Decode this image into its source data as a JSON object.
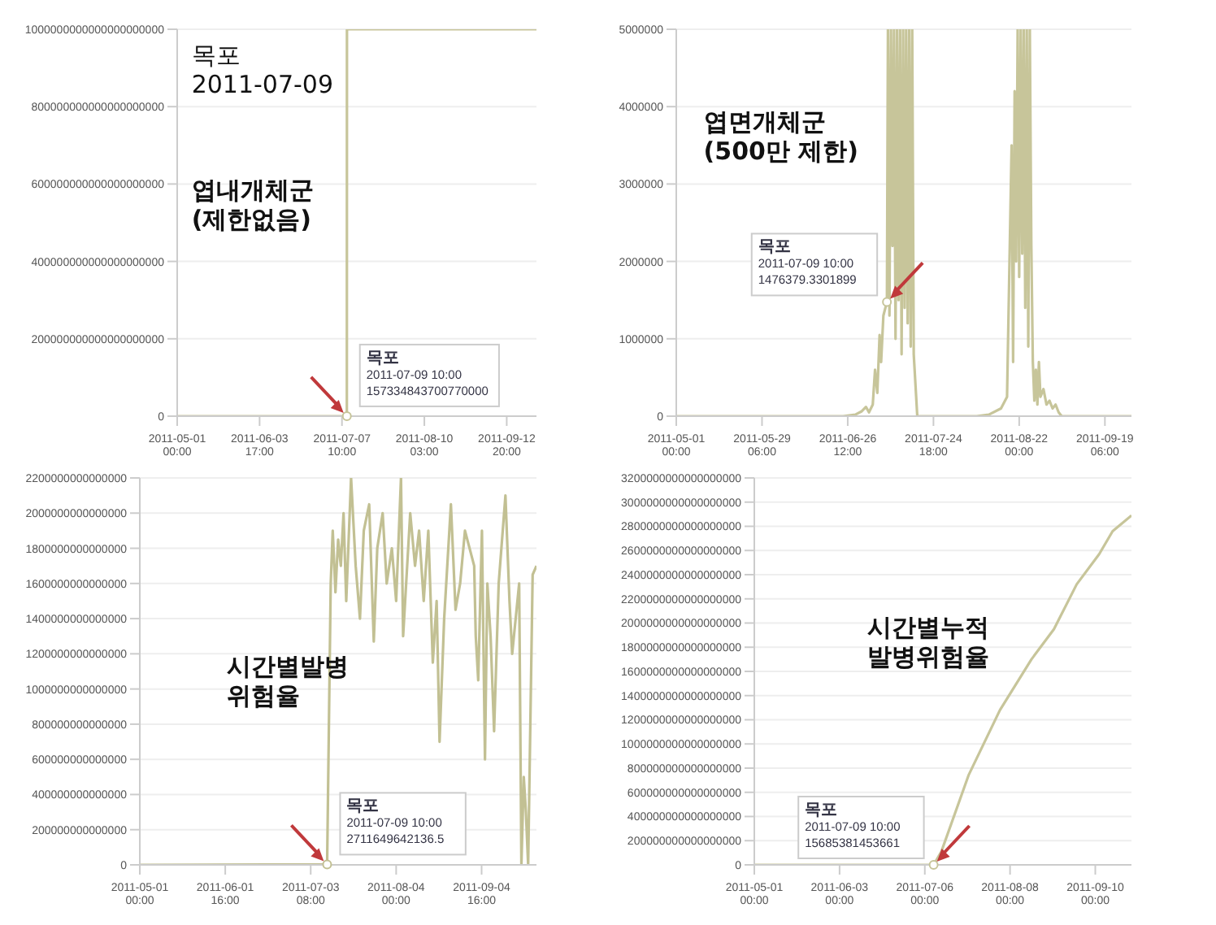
{
  "chart_data": [
    {
      "type": "line",
      "color": "#c7c59a",
      "grid": "y",
      "xlim": [
        "2011-05-01T00:00",
        "2011-09-25T00:00"
      ],
      "ylim": [
        0,
        1e+21
      ],
      "yticks": [
        0,
        2e+20,
        4e+20,
        6e+20,
        8e+20,
        {
          "value": 1e+21,
          "label": "1000000000000000000000"
        }
      ],
      "xticks": [
        {
          "value": "2011-05-01T00:00",
          "label": "2011-05-01 00:00"
        },
        {
          "value": "2011-06-03T17:00",
          "label": "2011-06-03 17:00"
        },
        {
          "value": "2011-07-07T10:00",
          "label": "2011-07-07 10:00"
        },
        {
          "value": "2011-08-10T03:00",
          "label": "2011-08-10 03:00"
        },
        {
          "value": "2011-09-12T20:00",
          "label": "2011-09-12 20:00"
        }
      ],
      "x": [
        "2011-05-01T00:00",
        "2011-07-09T09:00",
        "2011-07-09T10:00",
        "2011-07-09T11:00",
        "2011-09-25T00:00"
      ],
      "values": [
        0,
        0,
        157334843700770000,
        1e+21,
        1e+21
      ],
      "annotations": [
        "목포\n2011-07-09",
        "엽내개체군\n(제한없음)",
        {
          "text": "목포\n2011-07-09 10:00\n157334843700770000",
          "x": "2011-07-09T10:00",
          "y": 157334843700770000
        }
      ]
    },
    {
      "type": "line",
      "color": "#c7c59a",
      "grid": "y",
      "xlim": [
        "2011-05-01T00:00",
        "2011-09-28T00:00"
      ],
      "ylim": [
        0,
        5000000
      ],
      "yticks": [
        0,
        1000000,
        2000000,
        3000000,
        4000000,
        5000000
      ],
      "xticks": [
        {
          "value": "2011-05-01T00:00",
          "label": "2011-05-01 00:00"
        },
        {
          "value": "2011-05-29T06:00",
          "label": "2011-05-29 06:00"
        },
        {
          "value": "2011-06-26T12:00",
          "label": "2011-06-26 12:00"
        },
        {
          "value": "2011-07-24T18:00",
          "label": "2011-07-24 18:00"
        },
        {
          "value": "2011-08-22T00:00",
          "label": "2011-08-22 00:00"
        },
        {
          "value": "2011-09-19T06:00",
          "label": "2011-09-19 06:00"
        }
      ],
      "x": [
        "2011-05-01T00:00",
        "2011-06-25T00:00",
        "2011-06-29T00:00",
        "2011-07-01T00:00",
        "2011-07-02T12:00",
        "2011-07-03T12:00",
        "2011-07-04T18:00",
        "2011-07-05T12:00",
        "2011-07-06T06:00",
        "2011-07-07T00:00",
        "2011-07-07T12:00",
        "2011-07-08T06:00",
        "2011-07-09T10:00",
        "2011-07-09T18:00",
        "2011-07-10T06:00",
        "2011-07-10T18:00",
        "2011-07-11T06:00",
        "2011-07-11T18:00",
        "2011-07-12T06:00",
        "2011-07-12T18:00",
        "2011-07-13T06:00",
        "2011-07-13T18:00",
        "2011-07-14T06:00",
        "2011-07-14T18:00",
        "2011-07-15T06:00",
        "2011-07-15T18:00",
        "2011-07-16T06:00",
        "2011-07-16T18:00",
        "2011-07-17T06:00",
        "2011-07-17T18:00",
        "2011-07-18T06:00",
        "2011-07-19T10:00",
        "2011-08-08T00:00",
        "2011-08-12T00:00",
        "2011-08-16T00:00",
        "2011-08-18T00:00",
        "2011-08-19T12:00",
        "2011-08-20T00:00",
        "2011-08-20T12:00",
        "2011-08-21T00:00",
        "2011-08-21T12:00",
        "2011-08-22T00:00",
        "2011-08-22T12:00",
        "2011-08-23T00:00",
        "2011-08-23T12:00",
        "2011-08-24T00:00",
        "2011-08-24T12:00",
        "2011-08-25T00:00",
        "2011-08-25T12:00",
        "2011-08-26T00:00",
        "2011-08-26T12:00",
        "2011-08-27T00:00",
        "2011-08-27T12:00",
        "2011-08-28T00:00",
        "2011-08-28T12:00",
        "2011-08-29T00:00",
        "2011-08-30T00:00",
        "2011-08-31T00:00",
        "2011-09-01T00:00",
        "2011-09-02T00:00",
        "2011-09-03T00:00",
        "2011-09-04T00:00",
        "2011-09-05T00:00",
        "2011-09-28T00:00"
      ],
      "values": [
        0,
        0,
        20000,
        60000,
        120000,
        50000,
        150000,
        600000,
        300000,
        1050000,
        700000,
        1300000,
        1476379.3301899,
        5000000,
        1300000,
        5000000,
        2200000,
        5000000,
        1000000,
        5000000,
        1500000,
        5000000,
        800000,
        5000000,
        1400000,
        5000000,
        1200000,
        5000000,
        900000,
        5000000,
        800000,
        0,
        0,
        20000,
        100000,
        250000,
        3500000,
        700000,
        4200000,
        2000000,
        5000000,
        1800000,
        5000000,
        2100000,
        5000000,
        1400000,
        5000000,
        900000,
        5000000,
        2200000,
        700000,
        200000,
        600000,
        150000,
        700000,
        250000,
        350000,
        150000,
        200000,
        100000,
        150000,
        50000,
        0,
        0
      ],
      "annotations": [
        "엽면개체군\n(500만 제한)",
        {
          "text": "목포\n2011-07-09 10:00\n1476379.3301899",
          "x": "2011-07-09T10:00",
          "y": 1476379.3301899
        }
      ]
    },
    {
      "type": "line",
      "color": "#c2c093",
      "grid": "y",
      "xlim": [
        "2011-05-01T00:00",
        "2011-09-25T00:00"
      ],
      "ylim": [
        0,
        2200000000000000.0
      ],
      "yticks": [
        0,
        200000000000000.0,
        400000000000000.0,
        600000000000000.0,
        800000000000000.0,
        1000000000000000.0,
        1200000000000000.0,
        1400000000000000.0,
        1600000000000000.0,
        1800000000000000.0,
        2000000000000000.0,
        2200000000000000.0
      ],
      "xticks": [
        {
          "value": "2011-05-01T00:00",
          "label": "2011-05-01 00:00"
        },
        {
          "value": "2011-06-01T16:00",
          "label": "2011-06-01 16:00"
        },
        {
          "value": "2011-07-03T08:00",
          "label": "2011-07-03 08:00"
        },
        {
          "value": "2011-08-04T00:00",
          "label": "2011-08-04 00:00"
        },
        {
          "value": "2011-09-04T16:00",
          "label": "2011-09-04 16:00"
        }
      ],
      "x": [
        "2011-05-01T00:00",
        "2011-07-09T10:00",
        "2011-07-10T18:00",
        "2011-07-11T12:00",
        "2011-07-12T12:00",
        "2011-07-13T12:00",
        "2011-07-14T12:00",
        "2011-07-15T12:00",
        "2011-07-16T12:00",
        "2011-07-18T07:00",
        "2011-07-20T00:00",
        "2011-07-21T14:00",
        "2011-07-23T00:00",
        "2011-07-25T00:00",
        "2011-07-26T17:00",
        "2011-07-28T00:00",
        "2011-07-30T00:00",
        "2011-07-31T12:00",
        "2011-08-02T10:00",
        "2011-08-04T00:00",
        "2011-08-05T19:00",
        "2011-08-06T14:00",
        "2011-08-09T05:00",
        "2011-08-11T00:00",
        "2011-08-12T12:00",
        "2011-08-14T05:00",
        "2011-08-15T22:00",
        "2011-08-17T14:00",
        "2011-08-19T00:00",
        "2011-08-20T02:00",
        "2011-08-21T19:00",
        "2011-08-24T07:00",
        "2011-08-26T00:00",
        "2011-08-27T17:00",
        "2011-08-29T12:00",
        "2011-09-01T22:00",
        "2011-09-02T12:00",
        "2011-09-03T10:00",
        "2011-09-04T19:00",
        "2011-09-05T22:00",
        "2011-09-06T19:00",
        "2011-09-08T00:00",
        "2011-09-09T07:00",
        "2011-09-11T00:00",
        "2011-09-13T12:00",
        "2011-09-15T00:00",
        "2011-09-16T00:00",
        "2011-09-18T14:00",
        "2011-09-19T10:00",
        "2011-09-20T07:00",
        "2011-09-21T02:00",
        "2011-09-21T22:00",
        "2011-09-23T14:00",
        "2011-09-25T00:00"
      ],
      "values": [
        0,
        2711649642136.5,
        1600000000000000.0,
        1900000000000000.0,
        1550000000000000.0,
        1850000000000000.0,
        1700000000000000.0,
        2000000000000000.0,
        1500000000000000.0,
        2200000000000000.0,
        1700000000000000.0,
        1400000000000000.0,
        1900000000000000.0,
        2050000000000000.0,
        1270000000000000.0,
        1800000000000000.0,
        2000000000000000.0,
        1600000000000000.0,
        1800000000000000.0,
        1500000000000000.0,
        2200000000000000.0,
        1300000000000000.0,
        2000000000000000.0,
        1700000000000000.0,
        1900000000000000.0,
        1500000000000000.0,
        1900000000000000.0,
        1150000000000000.0,
        1500000000000000.0,
        700000000000000.0,
        1400000000000000.0,
        2050000000000000.0,
        1450000000000000.0,
        1600000000000000.0,
        1900000000000000.0,
        1700000000000000.0,
        1300000000000000.0,
        1050000000000000.0,
        1900000000000000.0,
        600000000000000.0,
        1600000000000000.0,
        1300000000000000.0,
        760000000000000.0,
        1600000000000000.0,
        2100000000000000.0,
        1500000000000000.0,
        1200000000000000.0,
        1600000000000000.0,
        0,
        500000000000000.0,
        300000000000000.0,
        0,
        1650000000000000.0,
        1700000000000000.0
      ],
      "annotations": [
        "시간별발병\n위험율",
        {
          "text": "목포\n2011-07-09 10:00\n2711649642136.5",
          "x": "2011-07-09T10:00",
          "y": 2711649642136.5
        }
      ]
    },
    {
      "type": "line",
      "color": "#c7c59a",
      "grid": "y",
      "xlim": [
        "2011-05-01T00:00",
        "2011-09-24T00:00"
      ],
      "ylim": [
        0,
        3.2e+18
      ],
      "yticks": [
        0,
        2e+17,
        4e+17,
        6e+17,
        8e+17,
        1e+18,
        1.2e+18,
        1.4e+18,
        1.6e+18,
        1.8e+18,
        2e+18,
        2.2e+18,
        2.4e+18,
        2.6e+18,
        2.8e+18,
        3e+18,
        3.2e+18
      ],
      "xticks": [
        {
          "value": "2011-05-01T00:00",
          "label": "2011-05-01 00:00"
        },
        {
          "value": "2011-06-03T00:00",
          "label": "2011-06-03 00:00"
        },
        {
          "value": "2011-07-06T00:00",
          "label": "2011-07-06 00:00"
        },
        {
          "value": "2011-08-08T00:00",
          "label": "2011-08-08 00:00"
        },
        {
          "value": "2011-09-10T00:00",
          "label": "2011-09-10 00:00"
        }
      ],
      "x": [
        "2011-05-01T00:00",
        "2011-07-09T10:00",
        "2011-07-12T10:00",
        "2011-07-22T22:00",
        "2011-08-04T02:00",
        "2011-08-16T07:00",
        "2011-08-25T00:00",
        "2011-09-02T19:00",
        "2011-09-11T12:00",
        "2011-09-16T17:00",
        "2011-09-24T00:00"
      ],
      "values": [
        0,
        15685381453661,
        1.1e+17,
        7.4e+17,
        1.28e+18,
        1.7e+18,
        1.95e+18,
        2.32e+18,
        2.57e+18,
        2.76e+18,
        2.89e+18
      ],
      "annotations": [
        "시간별누적\n발병위험율",
        {
          "text": "목포\n2011-07-09 10:00\n15685381453661",
          "x": "2011-07-09T10:00",
          "y": 15685381453661
        }
      ]
    }
  ]
}
